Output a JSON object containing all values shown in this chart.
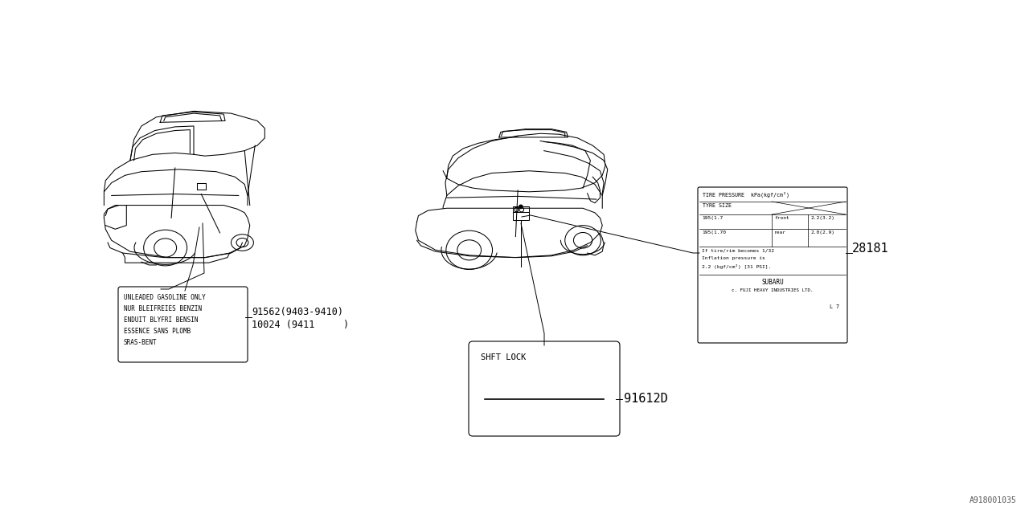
{
  "bg_color": "#ffffff",
  "line_color": "#000000",
  "fig_width": 12.8,
  "fig_height": 6.4,
  "watermark": "A918001035",
  "part_numbers": {
    "left_pn1": "91562(9403-9410)",
    "left_pn2": "10024 (9411     )",
    "tire_pressure": "28181",
    "shift_lock": "91612D"
  },
  "left_label_text": [
    "UNLEADED GASOLINE ONLY",
    "NUR BLEIFREIES BENZIN",
    "ENDUIT BLYFRI BENSIN",
    "ESSENCE SANS PLOMB",
    "SRAS-BENT"
  ],
  "tire_pressure_title1": "TIRE PRESSURE  kPa(kgf/cm²)",
  "tire_size_label": "TYRE SIZE",
  "tire_row1_left": "195(1.7",
  "tire_row1_mid": "front",
  "tire_row1_right": "2.2(3.2)",
  "tire_row2_left": "195(1.70",
  "tire_row2_mid": "rear",
  "tire_row2_right": "2.0(2.9)",
  "tire_note": [
    "If tire/rim becomes 1/32",
    "Inflation pressure is",
    "2.2 (kgf/cm²) [31 PSI]."
  ],
  "subaru_line1": "SUBARU",
  "subaru_line2": "c. FUJI HEAVY INDUSTRIES LTD.",
  "subaru_line3": "L 7",
  "shift_lock_label": "SHFT LOCK"
}
